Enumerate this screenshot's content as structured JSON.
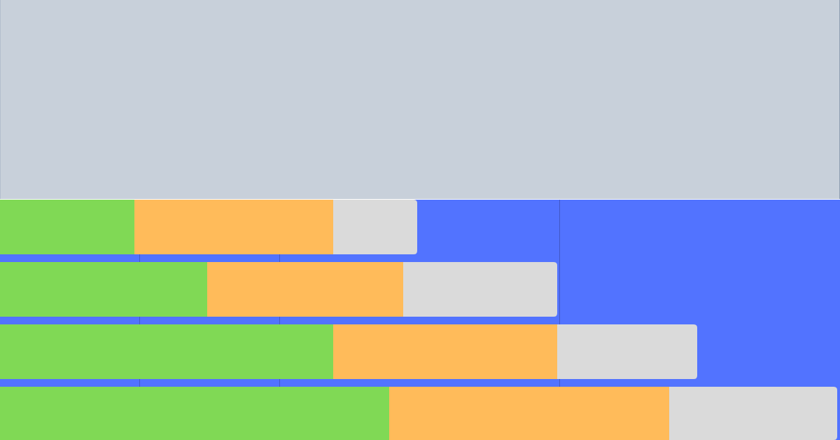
{
  "colors": {
    "top_background": "#c8d0da",
    "chart_background": "#5273ff",
    "gridline": "#4158c6",
    "bar_corner_radius_hint": "rounded-right"
  },
  "chart_data": {
    "type": "bar",
    "orientation": "horizontal",
    "stacked": true,
    "title": "",
    "xlabel": "",
    "ylabel": "",
    "categories": [
      "",
      "",
      "",
      ""
    ],
    "xlim": [
      0,
      15
    ],
    "grid": true,
    "legend": "none",
    "series": [
      {
        "color": "#80d955",
        "values": [
          2.4,
          3.7,
          5.95,
          6.95
        ]
      },
      {
        "color": "#ffbb5a",
        "values": [
          3.55,
          3.5,
          4.0,
          5.0
        ]
      },
      {
        "color": "#dadada",
        "values": [
          1.5,
          2.75,
          2.5,
          3.0
        ]
      }
    ]
  }
}
